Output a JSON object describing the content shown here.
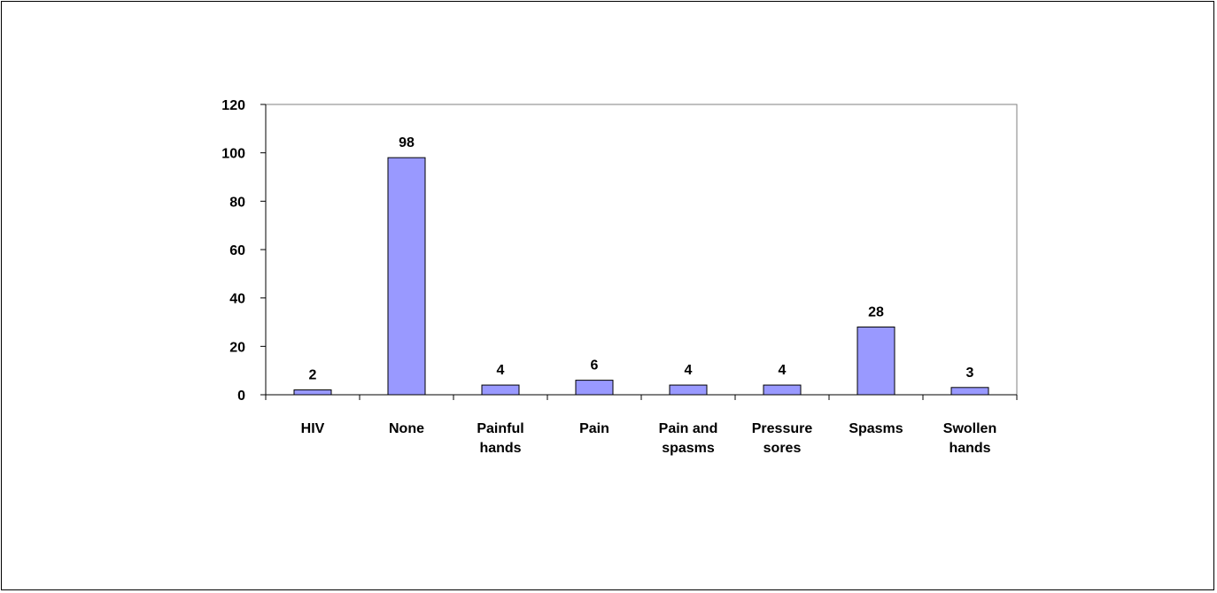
{
  "chart_data": {
    "type": "bar",
    "categories": [
      [
        "HIV"
      ],
      [
        "None"
      ],
      [
        "Painful",
        "hands"
      ],
      [
        "Pain"
      ],
      [
        "Pain and",
        "spasms"
      ],
      [
        "Pressure",
        "sores"
      ],
      [
        "Spasms"
      ],
      [
        "Swollen",
        "hands"
      ]
    ],
    "values": [
      2,
      98,
      4,
      6,
      4,
      4,
      28,
      3
    ],
    "data_labels": [
      "2",
      "98",
      "4",
      "6",
      "4",
      "4",
      "28",
      "3"
    ],
    "ylim": [
      0,
      120
    ],
    "yticks": [
      0,
      20,
      40,
      60,
      80,
      100,
      120
    ],
    "title": "",
    "xlabel": "",
    "ylabel": "",
    "grid": false,
    "legend": "none",
    "bar_color": "#9999ff",
    "bar_edge_color": "#000000",
    "plot_border_color": "#808080"
  }
}
